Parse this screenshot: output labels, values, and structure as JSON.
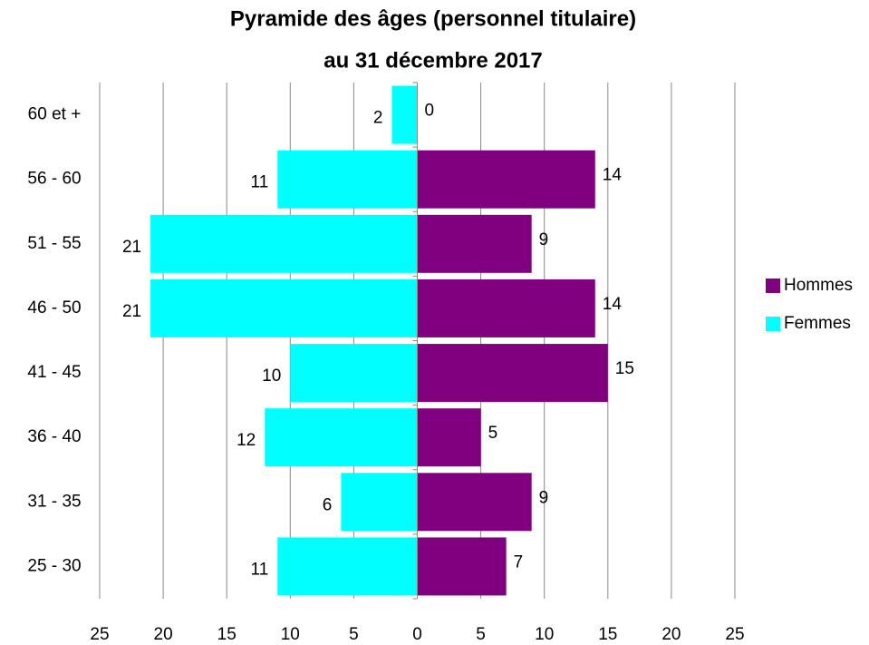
{
  "chart_data": {
    "type": "pyramid",
    "title": "Pyramide des âges (personnel titulaire)",
    "subtitle": "au 31 décembre 2017",
    "categories": [
      "60 et +",
      "56 - 60",
      "51 - 55",
      "46 - 50",
      "41 - 45",
      "36 - 40",
      "31 - 35",
      "25 - 30"
    ],
    "series": [
      {
        "name": "Hommes",
        "color": "#800080",
        "side": "right",
        "values": [
          0,
          14,
          9,
          14,
          15,
          5,
          9,
          7
        ]
      },
      {
        "name": "Femmes",
        "color": "#00ffff",
        "side": "left",
        "values": [
          2,
          11,
          21,
          21,
          10,
          12,
          6,
          11
        ]
      }
    ],
    "xlim": [
      -25,
      25
    ],
    "xticks": [
      {
        "value": -25,
        "label": "25"
      },
      {
        "value": -20,
        "label": "20"
      },
      {
        "value": -15,
        "label": "15"
      },
      {
        "value": -10,
        "label": "10"
      },
      {
        "value": -5,
        "label": "5"
      },
      0,
      5,
      10,
      15,
      20,
      25
    ],
    "grid": true,
    "legend": "right"
  }
}
